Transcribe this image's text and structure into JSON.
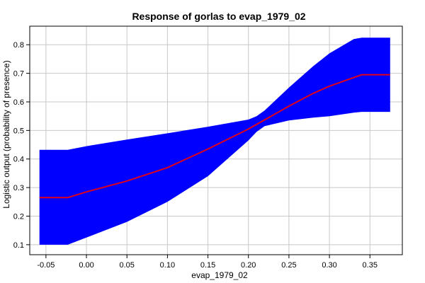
{
  "chart_data": {
    "type": "area",
    "title": "Response of gorlas to evap_1979_02",
    "xlabel": "evap_1979_02",
    "ylabel": "Logistic output (probability of presence)",
    "xlim": [
      -0.07,
      0.39
    ],
    "ylim": [
      0.065,
      0.865
    ],
    "xticks": [
      -0.05,
      0.0,
      0.05,
      0.1,
      0.15,
      0.2,
      0.25,
      0.3,
      0.35
    ],
    "xtick_labels": [
      "-0.05",
      "0.00",
      "0.05",
      "0.10",
      "0.15",
      "0.20",
      "0.25",
      "0.30",
      "0.35"
    ],
    "yticks": [
      0.1,
      0.2,
      0.3,
      0.4,
      0.5,
      0.6,
      0.7,
      0.8
    ],
    "ytick_labels": [
      "0.1",
      "0.2",
      "0.3",
      "0.4",
      "0.5",
      "0.6",
      "0.7",
      "0.8"
    ],
    "grid": true,
    "legend": false,
    "colors": {
      "band": "#0000ff",
      "mean": "#e0001a",
      "grid": "#c8c8c8"
    },
    "series": [
      {
        "role": "upper",
        "x": [
          -0.058,
          -0.023,
          0.0,
          0.05,
          0.1,
          0.15,
          0.2,
          0.21,
          0.22,
          0.25,
          0.28,
          0.3,
          0.33,
          0.34,
          0.375
        ],
        "y": [
          0.432,
          0.432,
          0.445,
          0.468,
          0.49,
          0.513,
          0.538,
          0.55,
          0.57,
          0.65,
          0.725,
          0.77,
          0.82,
          0.825,
          0.825
        ]
      },
      {
        "role": "lower",
        "x": [
          -0.058,
          -0.023,
          0.0,
          0.05,
          0.1,
          0.15,
          0.2,
          0.21,
          0.22,
          0.25,
          0.28,
          0.3,
          0.33,
          0.34,
          0.375
        ],
        "y": [
          0.1,
          0.1,
          0.125,
          0.18,
          0.25,
          0.34,
          0.465,
          0.495,
          0.515,
          0.535,
          0.545,
          0.55,
          0.562,
          0.565,
          0.565
        ]
      },
      {
        "role": "mean",
        "x": [
          -0.058,
          -0.023,
          0.0,
          0.05,
          0.1,
          0.15,
          0.2,
          0.25,
          0.28,
          0.3,
          0.34,
          0.375
        ],
        "y": [
          0.265,
          0.265,
          0.285,
          0.323,
          0.37,
          0.435,
          0.505,
          0.585,
          0.63,
          0.655,
          0.695,
          0.695
        ]
      }
    ]
  }
}
